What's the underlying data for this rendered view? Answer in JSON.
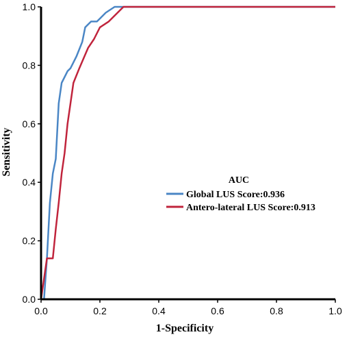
{
  "chart_data": {
    "type": "line",
    "xlabel": "1-Specificity",
    "ylabel": "Sensitivity",
    "xlim": [
      0,
      1.0
    ],
    "ylim": [
      0,
      1.0
    ],
    "x_ticks": [
      "0.0",
      "0.2",
      "0.4",
      "0.6",
      "0.8",
      "1.0"
    ],
    "y_ticks": [
      "0.0",
      "0.2",
      "0.4",
      "0.6",
      "0.8",
      "1.0"
    ],
    "grid": false,
    "legend": {
      "title": "AUC",
      "placement": "center-right"
    },
    "series": [
      {
        "name": "Global LUS Score:0.936",
        "color": "#4a86c5",
        "points": [
          [
            0.0,
            0.0
          ],
          [
            0.01,
            0.0
          ],
          [
            0.02,
            0.14
          ],
          [
            0.03,
            0.33
          ],
          [
            0.04,
            0.43
          ],
          [
            0.05,
            0.48
          ],
          [
            0.06,
            0.67
          ],
          [
            0.07,
            0.74
          ],
          [
            0.08,
            0.76
          ],
          [
            0.09,
            0.78
          ],
          [
            0.1,
            0.79
          ],
          [
            0.12,
            0.83
          ],
          [
            0.14,
            0.88
          ],
          [
            0.15,
            0.93
          ],
          [
            0.17,
            0.95
          ],
          [
            0.19,
            0.95
          ],
          [
            0.2,
            0.96
          ],
          [
            0.22,
            0.98
          ],
          [
            0.25,
            1.0
          ],
          [
            1.0,
            1.0
          ]
        ]
      },
      {
        "name": "Antero-lateral LUS Score:0.913",
        "color": "#c0243c",
        "points": [
          [
            0.0,
            0.0
          ],
          [
            0.02,
            0.14
          ],
          [
            0.04,
            0.14
          ],
          [
            0.05,
            0.24
          ],
          [
            0.06,
            0.33
          ],
          [
            0.07,
            0.43
          ],
          [
            0.08,
            0.5
          ],
          [
            0.09,
            0.6
          ],
          [
            0.1,
            0.67
          ],
          [
            0.11,
            0.74
          ],
          [
            0.13,
            0.79
          ],
          [
            0.16,
            0.86
          ],
          [
            0.18,
            0.89
          ],
          [
            0.2,
            0.93
          ],
          [
            0.23,
            0.95
          ],
          [
            0.28,
            1.0
          ],
          [
            1.0,
            1.0
          ]
        ]
      }
    ]
  }
}
